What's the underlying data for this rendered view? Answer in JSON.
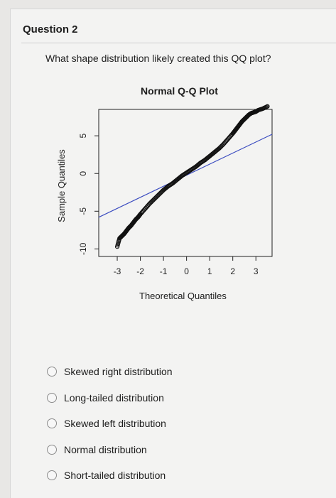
{
  "question": {
    "header": "Question 2",
    "text": "What shape distribution likely created this QQ plot?"
  },
  "chart_data": {
    "type": "scatter",
    "title": "Normal Q-Q Plot",
    "xlabel": "Theoretical Quantiles",
    "ylabel": "Sample Quantiles",
    "xlim": [
      -3.8,
      3.7
    ],
    "ylim": [
      -11,
      8.5
    ],
    "xticks": [
      -3,
      -2,
      -1,
      0,
      1,
      2,
      3
    ],
    "yticks": [
      -10,
      -5,
      0,
      5
    ],
    "reference_line": {
      "x": [
        -3.8,
        3.7
      ],
      "y": [
        -5.8,
        5.2
      ]
    },
    "points": {
      "x": [
        -3.0,
        -2.9,
        -2.8,
        -2.7,
        -2.6,
        -2.5,
        -2.4,
        -2.3,
        -2.2,
        -2.1,
        -2.0,
        -1.8,
        -1.6,
        -1.4,
        -1.2,
        -1.0,
        -0.8,
        -0.6,
        -0.4,
        -0.2,
        0.0,
        0.2,
        0.4,
        0.6,
        0.8,
        1.0,
        1.2,
        1.4,
        1.6,
        1.8,
        2.0,
        2.1,
        2.2,
        2.3,
        2.4,
        2.5,
        2.6,
        2.7,
        2.8,
        2.9,
        3.0,
        3.1,
        3.3,
        3.5
      ],
      "y": [
        -9.7,
        -8.6,
        -8.3,
        -8.0,
        -7.6,
        -7.2,
        -6.9,
        -6.5,
        -6.1,
        -5.8,
        -5.4,
        -4.7,
        -4.0,
        -3.4,
        -2.8,
        -2.2,
        -1.7,
        -1.3,
        -0.8,
        -0.3,
        0.1,
        0.5,
        0.9,
        1.4,
        1.8,
        2.3,
        2.8,
        3.3,
        3.9,
        4.6,
        5.3,
        5.7,
        6.1,
        6.5,
        6.9,
        7.2,
        7.5,
        7.8,
        8.0,
        8.1,
        8.2,
        8.4,
        8.6,
        8.9
      ]
    },
    "colors": {
      "line": "#3b4cc0",
      "points": "#111111"
    }
  },
  "options": [
    {
      "label": "Skewed right distribution"
    },
    {
      "label": "Long-tailed distribution"
    },
    {
      "label": "Skewed left distribution"
    },
    {
      "label": "Normal distribution"
    },
    {
      "label": "Short-tailed distribution"
    }
  ]
}
